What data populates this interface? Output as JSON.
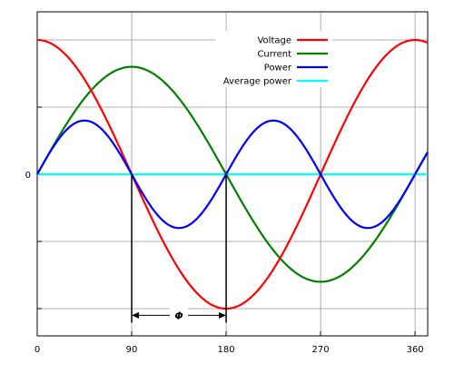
{
  "chart_data": {
    "type": "line",
    "title": "",
    "xlabel": "",
    "ylabel": "",
    "xlim": [
      0,
      372
    ],
    "ylim": [
      -1.0,
      1.0
    ],
    "x_ticks": [
      0,
      90,
      180,
      270,
      360
    ],
    "x_tick_labels": [
      "0",
      "90",
      "180",
      "270",
      "360"
    ],
    "y_ticks": [
      -1.0,
      -0.5,
      0,
      0.5,
      1.0
    ],
    "y_tick_labels": [
      "",
      "",
      "0",
      "",
      ""
    ],
    "grid": true,
    "legend": "top-right",
    "series": [
      {
        "name": "Voltage",
        "color": "#ff0000",
        "formula": "cos(x)",
        "amplitude": 1.0,
        "phase_deg": 0
      },
      {
        "name": "Current",
        "color": "#008000",
        "formula": "sin(x)",
        "amplitude": 0.8,
        "phase_deg": 90
      },
      {
        "name": "Power",
        "color": "#0000ff",
        "formula": "voltage*current",
        "amplitude": 0.4
      },
      {
        "name": "Average power",
        "color": "#00ffff",
        "value": 0
      }
    ],
    "annotations": [
      {
        "type": "vline",
        "x": 90,
        "from": 0,
        "to": -1.05
      },
      {
        "type": "vline",
        "x": 180,
        "from": 0,
        "to": -1.05
      },
      {
        "type": "arrow",
        "x_from": 90,
        "x_to": 180,
        "y": -1.05,
        "label": "Φ"
      }
    ]
  }
}
